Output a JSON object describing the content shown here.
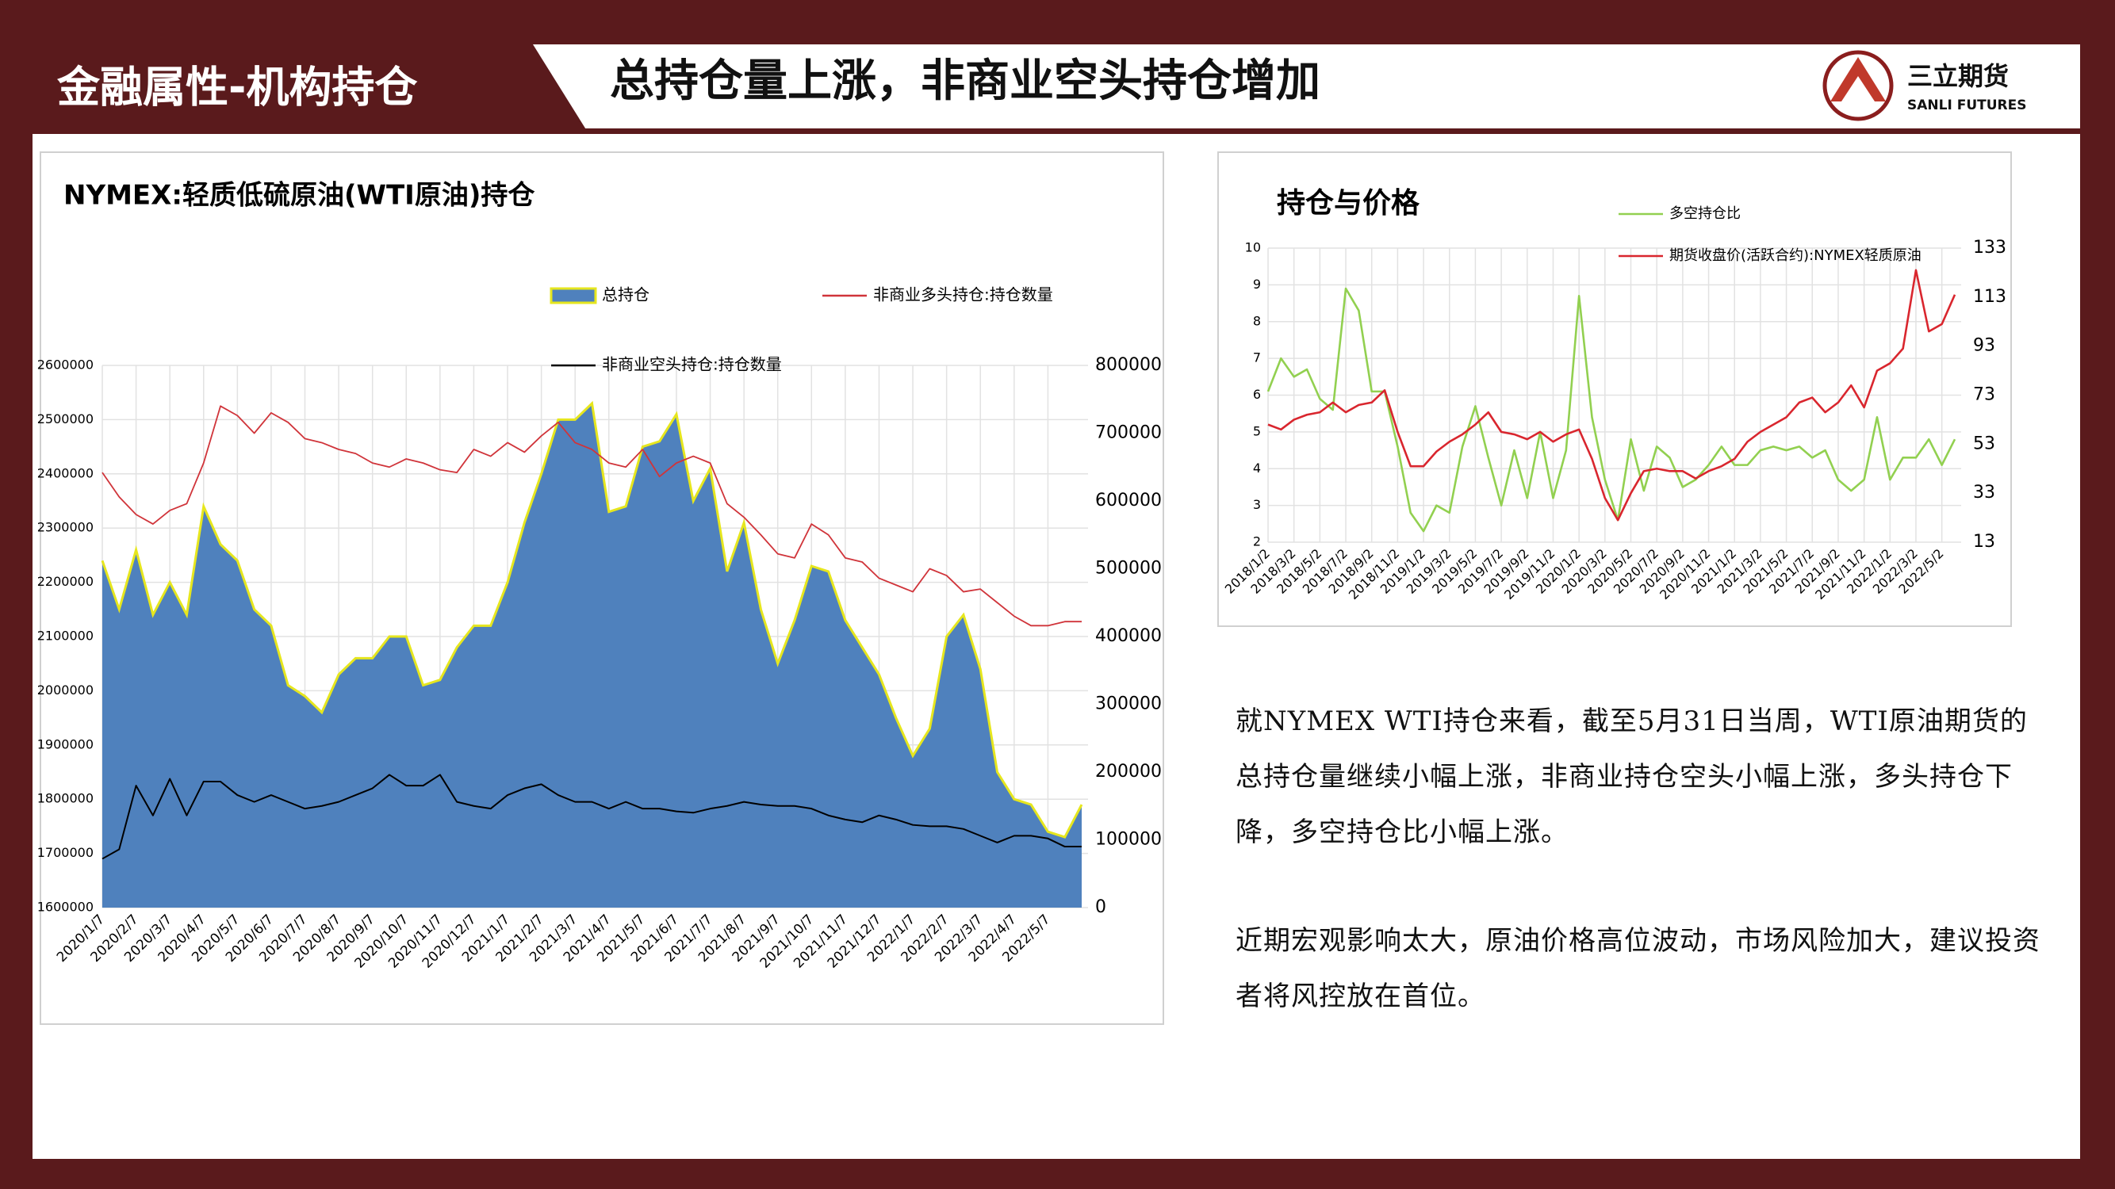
{
  "header": {
    "section": "金融属性-机构持仓",
    "title": "总持仓量上涨，非商业空头持仓增加",
    "logo": {
      "name": "三立期货",
      "subtitle": "SANLI FUTURES"
    }
  },
  "chart_data": [
    {
      "type": "area",
      "title": "NYMEX:轻质低硫原油(WTI原油)持仓",
      "categories": [
        "2020/1/7",
        null,
        "2020/2/7",
        null,
        "2020/3/7",
        null,
        "2020/4/7",
        null,
        "2020/5/7",
        null,
        "2020/6/7",
        null,
        "2020/7/7",
        null,
        "2020/8/7",
        null,
        "2020/9/7",
        null,
        "2020/10/7",
        null,
        "2020/11/7",
        null,
        "2020/12/7",
        null,
        "2021/1/7",
        null,
        "2021/2/7",
        null,
        "2021/3/7",
        null,
        "2021/4/7",
        null,
        "2021/5/7",
        null,
        "2021/6/7",
        null,
        "2021/7/7",
        null,
        "2021/8/7",
        null,
        "2021/9/7",
        null,
        "2021/10/7",
        null,
        "2021/11/7",
        null,
        "2021/12/7",
        null,
        "2022/1/7",
        null,
        "2022/2/7",
        null,
        "2022/3/7",
        null,
        "2022/4/7",
        null,
        "2022/5/7",
        null,
        null
      ],
      "series": [
        {
          "name": "总持仓",
          "type": "area",
          "color": "#4f81bd",
          "outline": "#e6e61e",
          "values": [
            2240000,
            2150000,
            2260000,
            2140000,
            2200000,
            2140000,
            2340000,
            2270000,
            2240000,
            2150000,
            2120000,
            2010000,
            1990000,
            1960000,
            2030000,
            2060000,
            2060000,
            2100000,
            2100000,
            2010000,
            2020000,
            2080000,
            2120000,
            2120000,
            2200000,
            2310000,
            2400000,
            2500000,
            2500000,
            2530000,
            2330000,
            2340000,
            2450000,
            2460000,
            2510000,
            2350000,
            2410000,
            2220000,
            2310000,
            2150000,
            2050000,
            2130000,
            2230000,
            2220000,
            2130000,
            2080000,
            2030000,
            1950000,
            1880000,
            1930000,
            2100000,
            2140000,
            2040000,
            1850000,
            1800000,
            1790000,
            1740000,
            1730000,
            1790000
          ]
        },
        {
          "name": "非商业多头持仓:持仓数量",
          "type": "line",
          "axis": "y2",
          "color": "#d0343a",
          "values": [
            642000,
            606000,
            580000,
            566000,
            586000,
            596000,
            656000,
            740000,
            726000,
            700000,
            730000,
            716000,
            692000,
            686000,
            676000,
            670000,
            656000,
            650000,
            662000,
            656000,
            646000,
            642000,
            676000,
            666000,
            686000,
            672000,
            696000,
            716000,
            686000,
            676000,
            656000,
            650000,
            676000,
            636000,
            656000,
            666000,
            656000,
            596000,
            576000,
            550000,
            522000,
            516000,
            566000,
            550000,
            516000,
            510000,
            486000,
            476000,
            466000,
            500000,
            490000,
            466000,
            470000,
            450000,
            430000,
            416000,
            416000,
            422000,
            422000
          ]
        },
        {
          "name": "非商业空头持仓:持仓数量",
          "type": "line",
          "axis": "y2",
          "color": "#000000",
          "values": [
            72000,
            86000,
            180000,
            136000,
            190000,
            136000,
            186000,
            186000,
            166000,
            156000,
            166000,
            156000,
            146000,
            150000,
            156000,
            166000,
            176000,
            196000,
            180000,
            180000,
            196000,
            156000,
            150000,
            146000,
            166000,
            176000,
            182000,
            166000,
            156000,
            156000,
            146000,
            156000,
            146000,
            146000,
            142000,
            140000,
            146000,
            150000,
            156000,
            152000,
            150000,
            150000,
            146000,
            136000,
            130000,
            126000,
            136000,
            130000,
            122000,
            120000,
            120000,
            116000,
            106000,
            96000,
            106000,
            106000,
            102000,
            90000,
            90000
          ]
        }
      ],
      "ylim": [
        1600000,
        2600000
      ],
      "yticks": [
        1600000,
        1700000,
        1800000,
        1900000,
        2000000,
        2100000,
        2200000,
        2300000,
        2400000,
        2500000,
        2600000
      ],
      "y2lim": [
        0,
        800000
      ],
      "y2ticks": [
        0,
        100000,
        200000,
        300000,
        400000,
        500000,
        600000,
        700000,
        800000
      ],
      "grid": true
    },
    {
      "type": "line",
      "title": "持仓与价格",
      "categories": [
        "2018/1/2",
        null,
        "2018/3/2",
        null,
        "2018/5/2",
        null,
        "2018/7/2",
        null,
        "2018/9/2",
        null,
        "2018/11/2",
        null,
        "2019/1/2",
        null,
        "2019/3/2",
        null,
        "2019/5/2",
        null,
        "2019/7/2",
        null,
        "2019/9/2",
        null,
        "2019/11/2",
        null,
        "2020/1/2",
        null,
        "2020/3/2",
        null,
        "2020/5/2",
        null,
        "2020/7/2",
        null,
        "2020/9/2",
        null,
        "2020/11/2",
        null,
        "2021/1/2",
        null,
        "2021/3/2",
        null,
        "2021/5/2",
        null,
        "2021/7/2",
        null,
        "2021/9/2",
        null,
        "2021/11/2",
        null,
        "2022/1/2",
        null,
        "2022/3/2",
        null,
        "2022/5/2",
        null
      ],
      "series": [
        {
          "name": "多空持仓比",
          "type": "line",
          "color": "#92d050",
          "values": [
            6.1,
            7.0,
            6.5,
            6.7,
            5.9,
            5.6,
            8.9,
            8.3,
            6.1,
            6.1,
            4.6,
            2.8,
            2.3,
            3.0,
            2.8,
            4.6,
            5.7,
            4.3,
            3.0,
            4.5,
            3.2,
            5.0,
            3.2,
            4.5,
            8.7,
            5.4,
            3.7,
            2.6,
            4.8,
            3.4,
            4.6,
            4.3,
            3.5,
            3.7,
            4.1,
            4.6,
            4.1,
            4.1,
            4.5,
            4.6,
            4.5,
            4.6,
            4.3,
            4.5,
            3.7,
            3.4,
            3.7,
            5.4,
            3.7,
            4.3,
            4.3,
            4.8,
            4.1,
            4.8
          ]
        },
        {
          "name": "期货收盘价(活跃合约):NYMEX轻质原油",
          "type": "line",
          "axis": "y2",
          "color": "#d9262e",
          "values": [
            61,
            59,
            63,
            65,
            66,
            70,
            66,
            69,
            70,
            75,
            58,
            44,
            44,
            50,
            54,
            57,
            61,
            66,
            58,
            57,
            55,
            58,
            54,
            57,
            59,
            47,
            31,
            22,
            33,
            42,
            43,
            42,
            42,
            39,
            42,
            44,
            47,
            54,
            58,
            61,
            64,
            70,
            72,
            66,
            70,
            77,
            68,
            83,
            86,
            92,
            124,
            99,
            102,
            114
          ]
        }
      ],
      "ylim": [
        2,
        10
      ],
      "yticks": [
        2,
        3,
        4,
        5,
        6,
        7,
        8,
        9,
        10
      ],
      "y2lim": [
        13,
        133
      ],
      "y2ticks": [
        13,
        33,
        53,
        73,
        93,
        113,
        133
      ],
      "grid": true
    }
  ],
  "text": {
    "paragraphs": [
      "就NYMEX WTI持仓来看，截至5月31日当周，WTI原油期货的总持仓量继续小幅上涨，非商业持仓空头小幅上涨，多头持仓下降，多空持仓比小幅上涨。",
      "近期宏观影响太大，原油价格高位波动，市场风险加大，建议投资者将风控放在首位。"
    ]
  }
}
